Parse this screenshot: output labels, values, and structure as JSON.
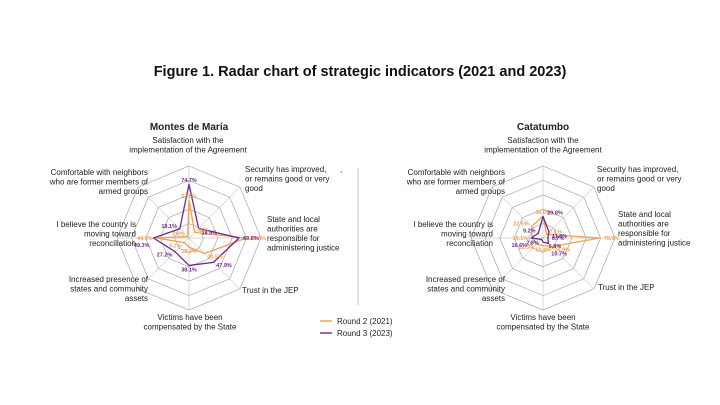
{
  "figure": {
    "title": "Figure 1. Radar chart of strategic indicators (2021 and 2023)"
  },
  "colors": {
    "round2": "#F5A04E",
    "round3": "#6A2A8C",
    "grid": "#9a9a9a",
    "axis": "#b0b0b0"
  },
  "chart_data": [
    {
      "type": "radar",
      "title": "Montes de María",
      "axes": [
        [
          "Satisfaction with the",
          "implementation of the Agreement"
        ],
        [
          "Security has improved,",
          "or remains good or very",
          "good"
        ],
        [
          "State and local",
          "authorities are",
          "responsible for",
          "administering justice"
        ],
        [
          "Trust in the JEP"
        ],
        [
          "Victims have been",
          "compensated by the State"
        ],
        [
          "Increased presence of",
          "states and community",
          "assets"
        ],
        [
          "I believe the country is",
          "moving toward",
          "reconciliation"
        ],
        [
          "Comfortable with neighbors",
          "who are former members of",
          "armed groups"
        ]
      ],
      "series": [
        {
          "name": "Round 2 (2021)",
          "values": [
            52.6,
            11.0,
            79.6,
            30.5,
            12.7,
            9.2,
            44.9,
            2.8
          ],
          "labels": [
            "52.6%",
            "11%",
            "79.6%",
            "30.5%",
            "12.7%",
            "9.2%",
            "44.9%",
            "2.8%"
          ]
        },
        {
          "name": "Round 3 (2023)",
          "values": [
            74.7,
            18.9,
            69.6,
            47.9,
            38.1,
            27.2,
            49.3,
            18.1
          ],
          "labels": [
            "74.7%",
            "18.9%",
            "69.6%",
            "47.9%",
            "38.1%",
            "27.2%",
            "49.3%",
            "18.1%"
          ]
        }
      ],
      "rmax": 100
    },
    {
      "type": "radar",
      "title": "Catatumbo",
      "axes": [
        [
          "Satisfaction with the",
          "implementation of the Agreement"
        ],
        [
          "Security has improved,",
          "or remains good or very",
          "good"
        ],
        [
          "State and local",
          "authorities are",
          "responsible for",
          "administering justice"
        ],
        [
          "Trust in the JEP"
        ],
        [
          "Victims have been",
          "compensated by the State"
        ],
        [
          "Increased presence of",
          "states and community",
          "assets"
        ],
        [
          "I believe the country is",
          "moving toward",
          "reconciliation"
        ],
        [
          "Comfortable with neighbors",
          "who are former members of",
          "armed groups"
        ]
      ],
      "series": [
        {
          "name": "Round 2 (2021)",
          "values": [
            30.6,
            7.1,
            78.9,
            16.9,
            10.4,
            12.3,
            15.1,
            22.5
          ],
          "labels": [
            "30.6%",
            "7.1%",
            "78.9%",
            "16.9%",
            "10.4%",
            "12.3%",
            "15.1%",
            "22.5%"
          ]
        },
        {
          "name": "Round 3 (2023)",
          "values": [
            29.8,
            11.8,
            6.7,
            10.7,
            5.8,
            2.8,
            16.6,
            9.2
          ],
          "labels": [
            "29.8%",
            "11.8%",
            "6.7%",
            "10.7%",
            "5.8%",
            "2.8%",
            "16.6%",
            "9.2%"
          ]
        }
      ],
      "rmax": 100
    }
  ],
  "legend": {
    "items": [
      "Round 2 (2021)",
      "Round 3 (2023)"
    ]
  },
  "stray_mark": ","
}
